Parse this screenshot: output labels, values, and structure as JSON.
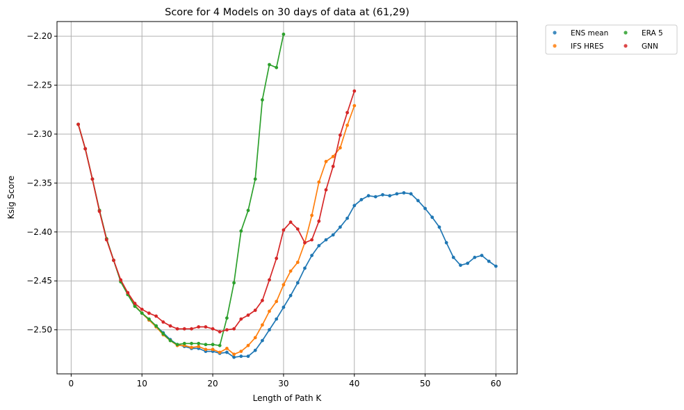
{
  "chart_data": {
    "type": "line",
    "title": "Score for 4 Models on 30 days of data at (61,29)",
    "xlabel": "Length of Path K",
    "ylabel": "Ksig Score",
    "xlim": [
      -2,
      63
    ],
    "ylim": [
      -2.545,
      -2.185
    ],
    "xticks": [
      0,
      10,
      20,
      30,
      40,
      50,
      60
    ],
    "yticks": [
      -2.2,
      -2.25,
      -2.3,
      -2.35,
      -2.4,
      -2.45,
      -2.5
    ],
    "xtick_labels": [
      "0",
      "10",
      "20",
      "30",
      "40",
      "50",
      "60"
    ],
    "ytick_labels": [
      "−2.20",
      "−2.25",
      "−2.30",
      "−2.35",
      "−2.40",
      "−2.45",
      "−2.50"
    ],
    "grid": true,
    "legend_position": "outside-top-right",
    "series": [
      {
        "name": "ENS mean",
        "color": "#1f77b4",
        "x": [
          1,
          2,
          3,
          4,
          5,
          6,
          7,
          8,
          9,
          10,
          11,
          12,
          13,
          14,
          15,
          16,
          17,
          18,
          19,
          20,
          21,
          22,
          23,
          24,
          25,
          26,
          27,
          28,
          29,
          30,
          31,
          32,
          33,
          34,
          35,
          36,
          37,
          38,
          39,
          40,
          41,
          42,
          43,
          44,
          45,
          46,
          47,
          48,
          49,
          50,
          51,
          52,
          53,
          54,
          55,
          56,
          57,
          58,
          59,
          60
        ],
        "y": [
          -2.29,
          -2.315,
          -2.346,
          -2.378,
          -2.407,
          -2.429,
          -2.45,
          -2.463,
          -2.475,
          -2.483,
          -2.49,
          -2.496,
          -2.503,
          -2.51,
          -2.515,
          -2.517,
          -2.519,
          -2.519,
          -2.522,
          -2.522,
          -2.524,
          -2.523,
          -2.528,
          -2.527,
          -2.527,
          -2.521,
          -2.511,
          -2.5,
          -2.489,
          -2.477,
          -2.465,
          -2.452,
          -2.437,
          -2.424,
          -2.414,
          -2.408,
          -2.403,
          -2.395,
          -2.386,
          -2.373,
          -2.367,
          -2.363,
          -2.364,
          -2.362,
          -2.363,
          -2.361,
          -2.36,
          -2.361,
          -2.368,
          -2.376,
          -2.385,
          -2.395,
          -2.411,
          -2.426,
          -2.434,
          -2.432,
          -2.426,
          -2.424,
          -2.43,
          -2.435
        ]
      },
      {
        "name": "IFS HRES",
        "color": "#ff7f0e",
        "x": [
          1,
          2,
          3,
          4,
          5,
          6,
          7,
          8,
          9,
          10,
          11,
          12,
          13,
          14,
          15,
          16,
          17,
          18,
          19,
          20,
          21,
          22,
          23,
          24,
          25,
          26,
          27,
          28,
          29,
          30,
          31,
          32,
          33,
          34,
          35,
          36,
          37,
          38,
          39,
          40
        ],
        "y": [
          -2.29,
          -2.315,
          -2.346,
          -2.378,
          -2.407,
          -2.429,
          -2.45,
          -2.463,
          -2.475,
          -2.483,
          -2.49,
          -2.497,
          -2.505,
          -2.511,
          -2.516,
          -2.516,
          -2.518,
          -2.517,
          -2.52,
          -2.52,
          -2.523,
          -2.519,
          -2.525,
          -2.522,
          -2.516,
          -2.508,
          -2.495,
          -2.481,
          -2.471,
          -2.454,
          -2.44,
          -2.431,
          -2.411,
          -2.383,
          -2.349,
          -2.328,
          -2.323,
          -2.314,
          -2.291,
          -2.271
        ]
      },
      {
        "name": "ERA 5",
        "color": "#2ca02c",
        "x": [
          1,
          2,
          3,
          4,
          5,
          6,
          7,
          8,
          9,
          10,
          11,
          12,
          13,
          14,
          15,
          16,
          17,
          18,
          19,
          20,
          21,
          22,
          23,
          24,
          25,
          26,
          27,
          28,
          29,
          30
        ],
        "y": [
          -2.29,
          -2.315,
          -2.346,
          -2.378,
          -2.407,
          -2.429,
          -2.451,
          -2.464,
          -2.476,
          -2.483,
          -2.489,
          -2.496,
          -2.504,
          -2.511,
          -2.515,
          -2.514,
          -2.514,
          -2.514,
          -2.515,
          -2.515,
          -2.516,
          -2.488,
          -2.452,
          -2.399,
          -2.378,
          -2.346,
          -2.265,
          -2.229,
          -2.232,
          -2.198
        ]
      },
      {
        "name": "GNN",
        "color": "#d62728",
        "x": [
          1,
          2,
          3,
          4,
          5,
          6,
          7,
          8,
          9,
          10,
          11,
          12,
          13,
          14,
          15,
          16,
          17,
          18,
          19,
          20,
          21,
          22,
          23,
          24,
          25,
          26,
          27,
          28,
          29,
          30,
          31,
          32,
          33,
          34,
          35,
          36,
          37,
          38,
          39,
          40
        ],
        "y": [
          -2.29,
          -2.315,
          -2.346,
          -2.379,
          -2.408,
          -2.429,
          -2.449,
          -2.462,
          -2.473,
          -2.479,
          -2.483,
          -2.486,
          -2.492,
          -2.496,
          -2.499,
          -2.499,
          -2.499,
          -2.497,
          -2.497,
          -2.499,
          -2.502,
          -2.5,
          -2.499,
          -2.489,
          -2.485,
          -2.48,
          -2.47,
          -2.449,
          -2.427,
          -2.398,
          -2.39,
          -2.397,
          -2.411,
          -2.408,
          -2.389,
          -2.357,
          -2.333,
          -2.301,
          -2.278,
          -2.256
        ]
      }
    ]
  }
}
